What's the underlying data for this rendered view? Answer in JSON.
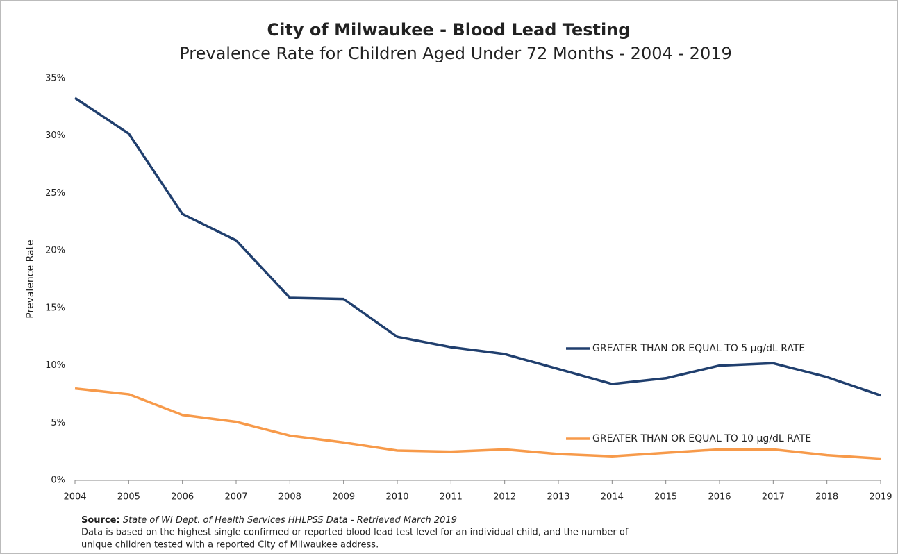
{
  "chart_data": {
    "type": "line",
    "title": "City of Milwaukee - Blood Lead Testing",
    "subtitle": "Prevalence Rate for Children Aged Under 72 Months - 2004 - 2019",
    "y_label": "Prevalence Rate",
    "categories": [
      "2004",
      "2005",
      "2006",
      "2007",
      "2008",
      "2009",
      "2010",
      "2011",
      "2012",
      "2013",
      "2014",
      "2015",
      "2016",
      "2017",
      "2018",
      "2019"
    ],
    "series": [
      {
        "name": "GREATER THAN OR EQUAL TO 5 μg/dL RATE",
        "color": "#203f6e",
        "values": [
          33.3,
          30.2,
          23.2,
          20.9,
          15.9,
          15.8,
          12.5,
          11.6,
          11.0,
          9.7,
          8.4,
          8.9,
          10.0,
          10.2,
          9.0,
          7.4
        ]
      },
      {
        "name": "GREATER THAN OR EQUAL TO 10 μg/dL RATE",
        "color": "#f79a4a",
        "values": [
          8.0,
          7.5,
          5.7,
          5.1,
          3.9,
          3.3,
          2.6,
          2.5,
          2.7,
          2.3,
          2.1,
          2.4,
          2.7,
          2.7,
          2.2,
          1.9
        ]
      }
    ],
    "ylim": [
      0,
      35
    ],
    "yticks": [
      {
        "value": 0,
        "label": "0%"
      },
      {
        "value": 5,
        "label": "5%"
      },
      {
        "value": 10,
        "label": "10%"
      },
      {
        "value": 15,
        "label": "15%"
      },
      {
        "value": 20,
        "label": "20%"
      },
      {
        "value": 25,
        "label": "25%"
      },
      {
        "value": 30,
        "label": "30%"
      },
      {
        "value": 35,
        "label": "35%"
      }
    ],
    "grid": false,
    "source_label": "Source:",
    "source": "State of WI Dept. of Health Services HHLPSS Data - Retrieved March 2019",
    "notes": [
      "Data is based on the highest single confirmed or reported blood lead test level for an individual child, and the number of",
      "unique children tested with a reported City of Milwaukee address."
    ]
  }
}
